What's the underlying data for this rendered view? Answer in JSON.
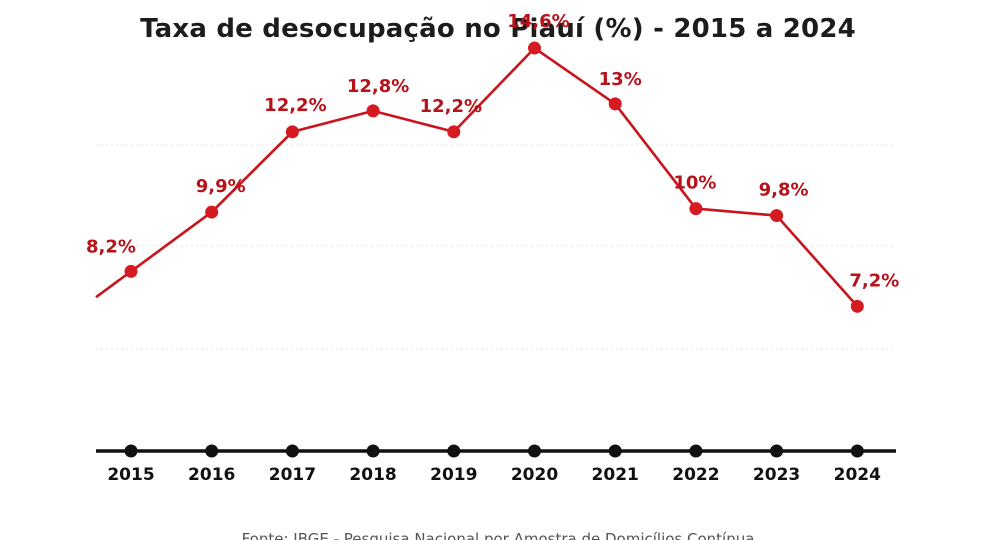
{
  "chart_data": {
    "type": "line",
    "title": "Taxa de desocupação no Piauí (%) - 2015 a 2024",
    "xlabel": "",
    "ylabel": "",
    "ylim": [
      0,
      16
    ],
    "grid": true,
    "categories": [
      "2015",
      "2016",
      "2017",
      "2018",
      "2019",
      "2020",
      "2021",
      "2022",
      "2023",
      "2024"
    ],
    "values": [
      8.2,
      9.9,
      12.2,
      12.8,
      12.2,
      14.6,
      13,
      10,
      9.8,
      7.2
    ],
    "data_labels": [
      "8,2%",
      "9,9%",
      "12,2%",
      "12,8%",
      "12,2%",
      "14,6%",
      "13%",
      "10%",
      "9,8%",
      "7,2%"
    ],
    "colors": {
      "series": "#c8141c",
      "axis": "#111111"
    }
  },
  "source": "Fonte: IBGE - Pesquisa Nacional por Amostra de Domicílios Contínua"
}
